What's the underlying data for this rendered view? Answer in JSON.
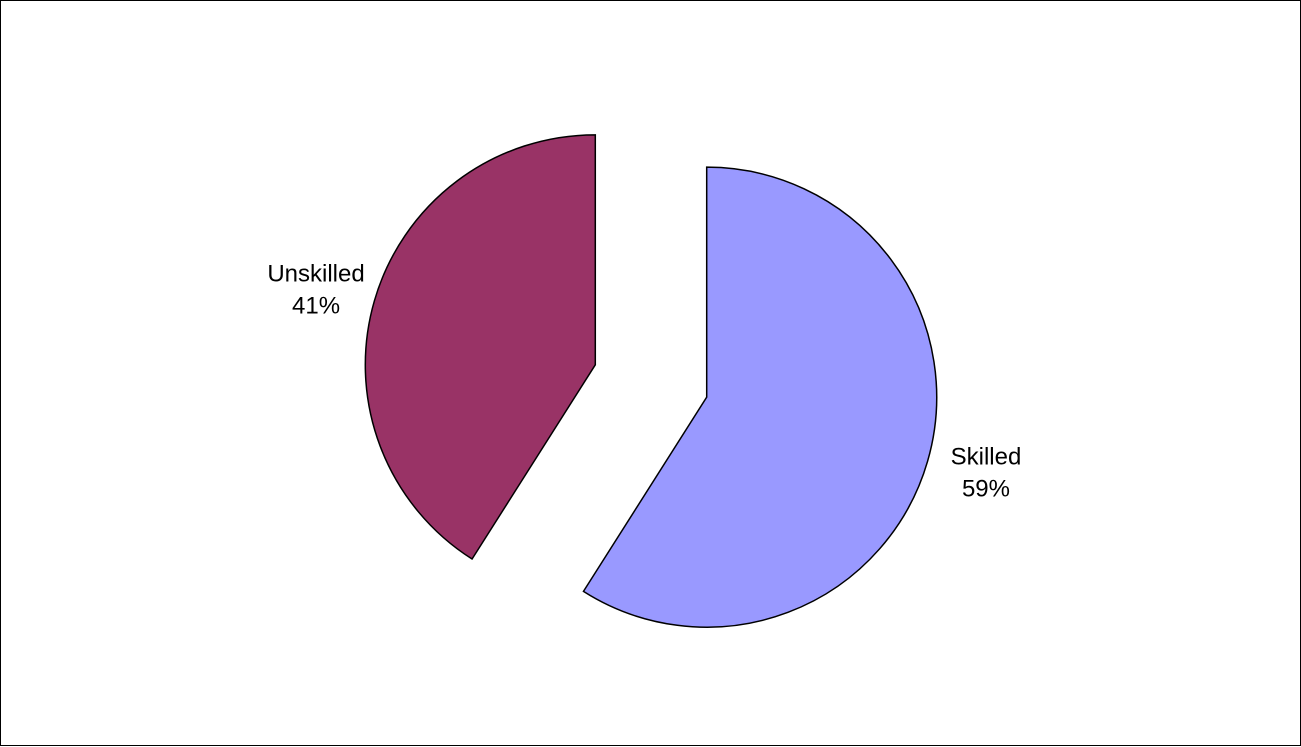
{
  "chart_data": {
    "type": "pie",
    "title": "",
    "slices": [
      {
        "label": "Skilled",
        "value": 59,
        "percent_label": "59%",
        "color": "#9999ff"
      },
      {
        "label": "Unskilled",
        "value": 41,
        "percent_label": "41%",
        "color": "#993366"
      }
    ],
    "start_angle_deg": 0,
    "direction": "clockwise",
    "exploded": true,
    "legend": "none",
    "border_color": "#000000"
  }
}
